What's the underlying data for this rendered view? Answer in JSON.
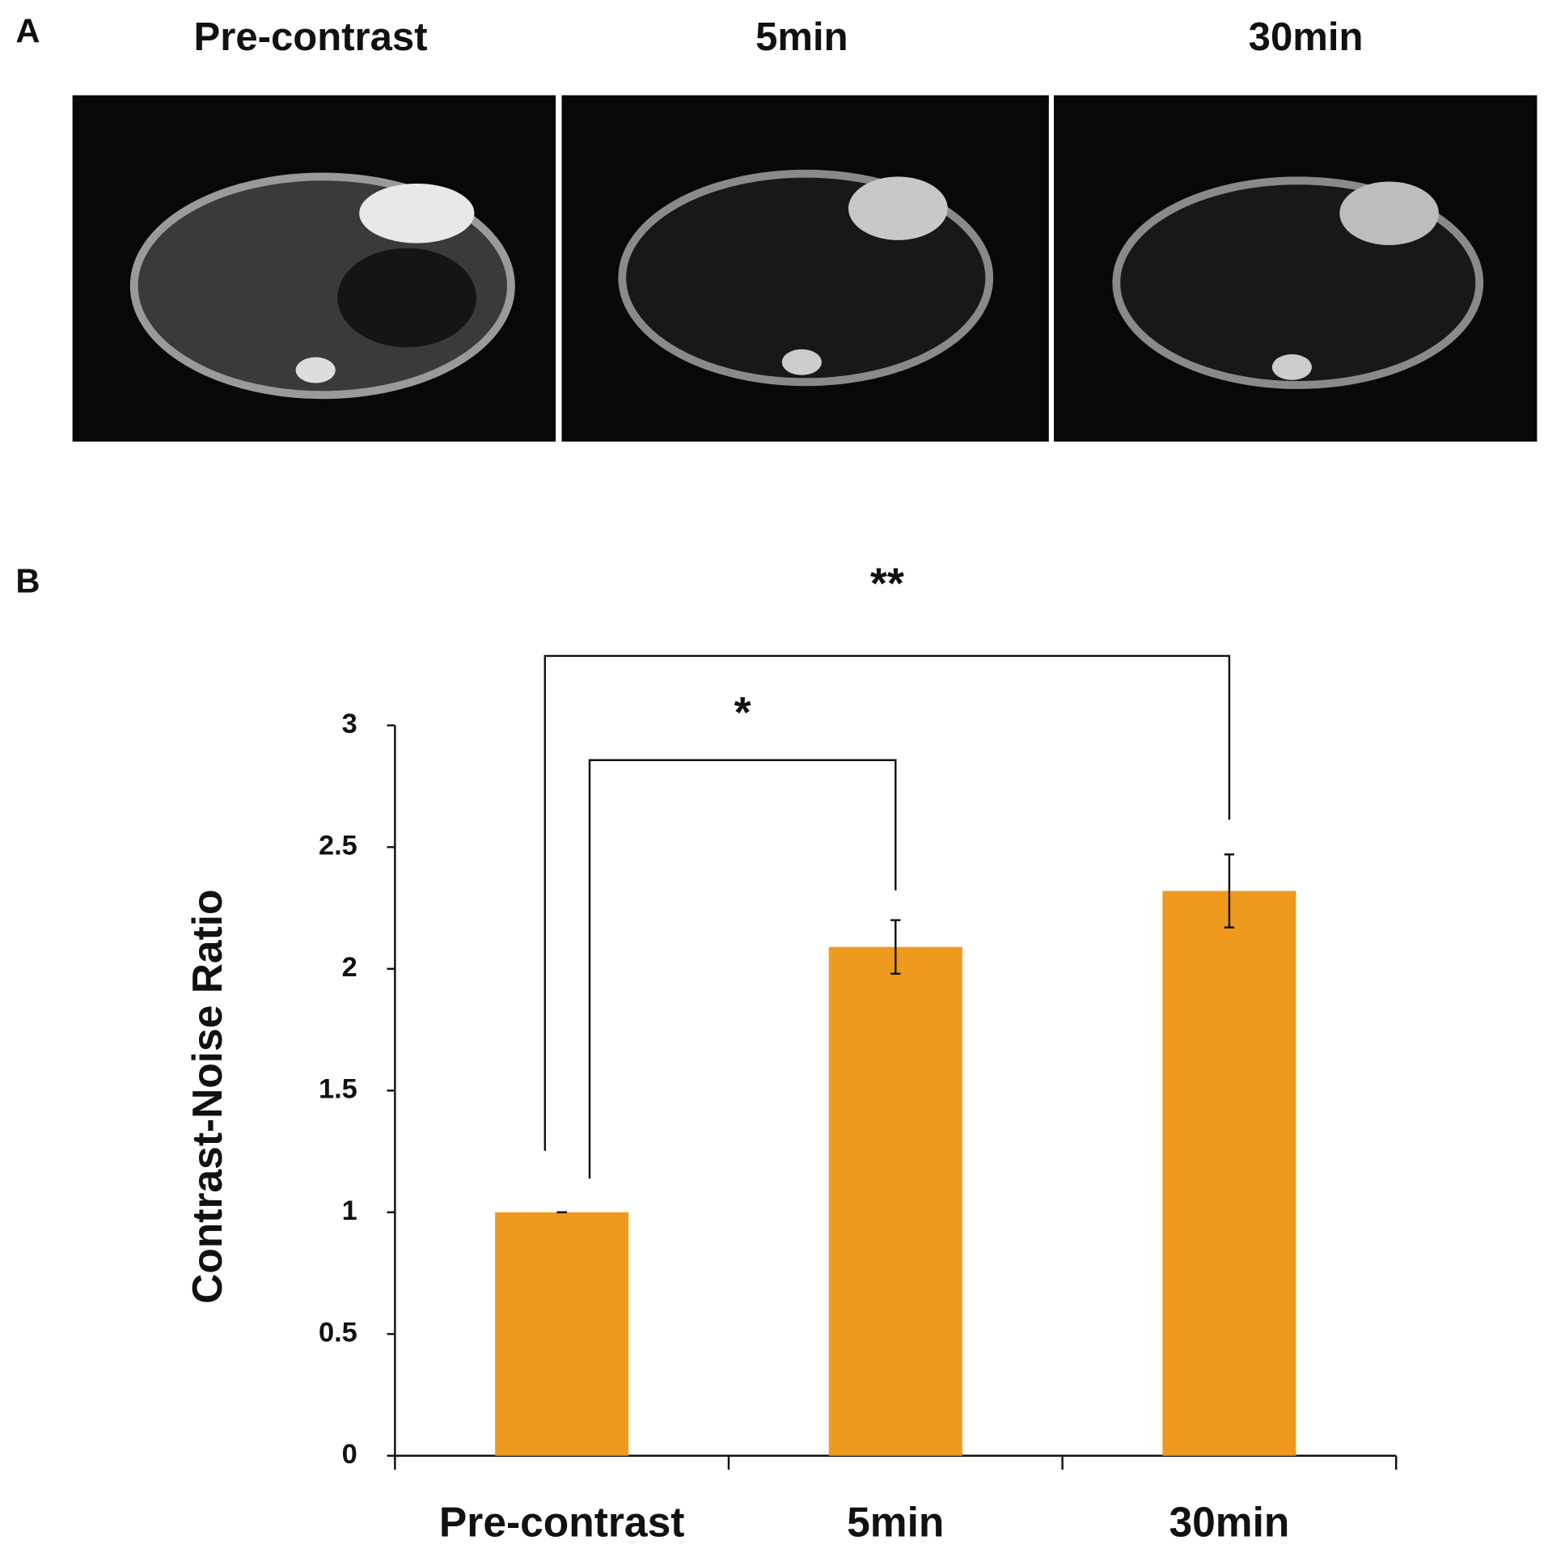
{
  "panel_labels": [
    "A",
    "B"
  ],
  "image_titles": [
    "Pre-contrast",
    "5min",
    "30min"
  ],
  "chart_data": {
    "type": "bar",
    "y_label": "Contrast-Noise Ratio",
    "categories": [
      "Pre-contrast",
      "5min",
      "30min"
    ],
    "values": [
      1.0,
      2.09,
      2.32
    ],
    "errors": [
      0,
      0.11,
      0.15
    ],
    "color": "#f0991f",
    "ylim": [
      0,
      3
    ],
    "yticks": [
      0,
      0.5,
      1,
      1.5,
      2,
      2.5,
      3
    ],
    "grid": false,
    "annotations": [
      "*",
      "**"
    ]
  }
}
